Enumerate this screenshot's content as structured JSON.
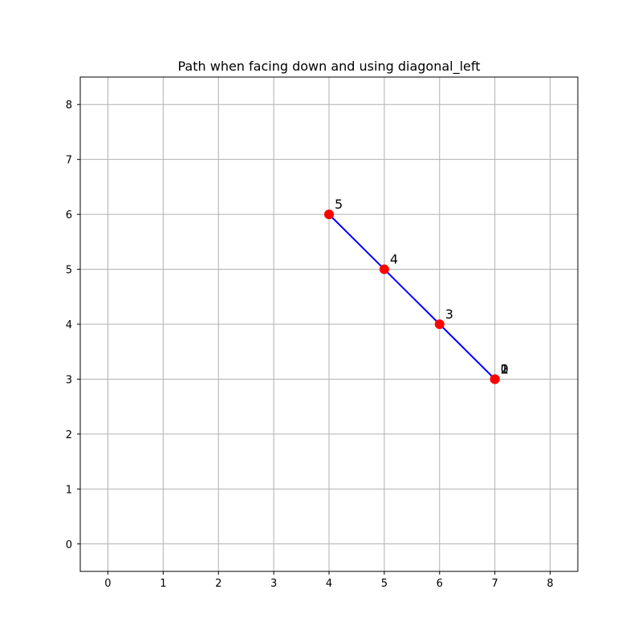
{
  "chart_data": {
    "type": "line",
    "title": "Path when facing down and using diagonal_left",
    "xlabel": "",
    "ylabel": "",
    "xlim": [
      -0.5,
      8.5
    ],
    "ylim": [
      -0.5,
      8.5
    ],
    "xticks": [
      0,
      1,
      2,
      3,
      4,
      5,
      6,
      7,
      8
    ],
    "yticks": [
      0,
      1,
      2,
      3,
      4,
      5,
      6,
      7,
      8
    ],
    "grid": true,
    "series": [
      {
        "line_color": "#0000ff",
        "marker_color": "#ff0000",
        "points": [
          {
            "x": 7,
            "y": 3,
            "label": "0"
          },
          {
            "x": 7,
            "y": 3,
            "label": "1"
          },
          {
            "x": 7,
            "y": 3,
            "label": "2"
          },
          {
            "x": 6,
            "y": 4,
            "label": "3"
          },
          {
            "x": 5,
            "y": 5,
            "label": "4"
          },
          {
            "x": 4,
            "y": 6,
            "label": "5"
          }
        ]
      }
    ]
  }
}
